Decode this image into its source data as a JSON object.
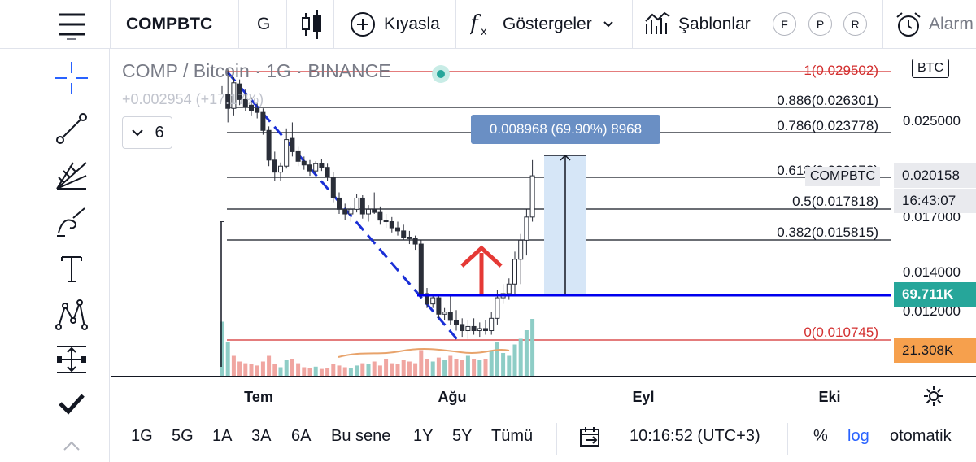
{
  "toolbar": {
    "symbol": "COMPBTC",
    "interval": "G",
    "compare_label": "Kıyasla",
    "indicators_label": "Göstergeler",
    "templates_label": "Şablonlar",
    "buttons": [
      "F",
      "P",
      "R"
    ],
    "alarm_label": "Alarm"
  },
  "legend": {
    "title": "COMP / Bitcoin · 1G · BINANCE",
    "change": "+0.002954 (+17.17%)",
    "indicators_count": "6"
  },
  "measure": {
    "label": "0.008968 (69.90%) 8968"
  },
  "fib_levels": [
    {
      "label": "1(0.029502)",
      "color": "#d32f2f"
    },
    {
      "label": "0.886(0.026301)",
      "color": "#131722"
    },
    {
      "label": "0.786(0.023778)",
      "color": "#131722"
    },
    {
      "label": "0.618(0.020072)",
      "color": "#131722"
    },
    {
      "label": "0.5(0.017818)",
      "color": "#131722"
    },
    {
      "label": "0.382(0.015815)",
      "color": "#131722"
    },
    {
      "label": "0(0.010745)",
      "color": "#d32f2f"
    }
  ],
  "price_axis": {
    "currency": "BTC",
    "labels": [
      "0.025000",
      "0.017000",
      "0.014000",
      "0.012000"
    ],
    "symbol_tag": "COMPBTC",
    "price_tag": "0.020158",
    "countdown_tag": "16:43:07",
    "hline_tag": "69.711K",
    "volume_tag": "21.308K"
  },
  "time_axis": {
    "labels": [
      "Tem",
      "Ağu",
      "Eyl",
      "Eki"
    ]
  },
  "bottom": {
    "ranges": [
      "1G",
      "5G",
      "1A",
      "3A",
      "6A",
      "Bu sene",
      "1Y",
      "5Y",
      "Tümü"
    ],
    "time": "10:16:52 (UTC+3)",
    "percent": "%",
    "log": "log",
    "auto": "otomatik"
  },
  "colors": {
    "up": "#ffffff",
    "down": "#2a2e39",
    "volume_up": "#8ecdc6",
    "volume_down": "#f0a6a1",
    "accent_blue": "#2962ff",
    "hline": "#0000ee",
    "fib_red": "#d32f2f",
    "measure_fill": "#d6e6f7",
    "log_color": "#2962ff",
    "arrow_red": "#e53935"
  },
  "chart_data": {
    "type": "candlestick",
    "ohlc": [
      {
        "o": 0.017,
        "h": 0.0282,
        "l": 0.017,
        "c": 0.0275
      },
      {
        "o": 0.0275,
        "h": 0.0297,
        "l": 0.0248,
        "c": 0.0262
      },
      {
        "o": 0.0262,
        "h": 0.029,
        "l": 0.0255,
        "c": 0.0285
      },
      {
        "o": 0.0284,
        "h": 0.0288,
        "l": 0.0265,
        "c": 0.027
      },
      {
        "o": 0.027,
        "h": 0.0279,
        "l": 0.0259,
        "c": 0.0264
      },
      {
        "o": 0.0265,
        "h": 0.0272,
        "l": 0.0255,
        "c": 0.026
      },
      {
        "o": 0.0262,
        "h": 0.0268,
        "l": 0.0252,
        "c": 0.0258
      },
      {
        "o": 0.0258,
        "h": 0.0262,
        "l": 0.0236,
        "c": 0.024
      },
      {
        "o": 0.024,
        "h": 0.0244,
        "l": 0.021,
        "c": 0.0215
      },
      {
        "o": 0.0215,
        "h": 0.0222,
        "l": 0.0198,
        "c": 0.0205
      },
      {
        "o": 0.0205,
        "h": 0.0213,
        "l": 0.0198,
        "c": 0.021
      },
      {
        "o": 0.021,
        "h": 0.0242,
        "l": 0.0208,
        "c": 0.0232
      },
      {
        "o": 0.0233,
        "h": 0.0248,
        "l": 0.0218,
        "c": 0.0222
      },
      {
        "o": 0.0222,
        "h": 0.0226,
        "l": 0.021,
        "c": 0.0214
      },
      {
        "o": 0.0214,
        "h": 0.0218,
        "l": 0.0207,
        "c": 0.0211
      },
      {
        "o": 0.0211,
        "h": 0.0215,
        "l": 0.0202,
        "c": 0.0206
      },
      {
        "o": 0.0206,
        "h": 0.0214,
        "l": 0.0203,
        "c": 0.0212
      },
      {
        "o": 0.0212,
        "h": 0.0216,
        "l": 0.0206,
        "c": 0.0209
      },
      {
        "o": 0.0209,
        "h": 0.0212,
        "l": 0.0198,
        "c": 0.0201
      },
      {
        "o": 0.0201,
        "h": 0.0205,
        "l": 0.0183,
        "c": 0.0186
      },
      {
        "o": 0.0186,
        "h": 0.019,
        "l": 0.0175,
        "c": 0.0178
      },
      {
        "o": 0.0178,
        "h": 0.0182,
        "l": 0.0171,
        "c": 0.0175
      },
      {
        "o": 0.0175,
        "h": 0.018,
        "l": 0.017,
        "c": 0.0178
      },
      {
        "o": 0.0178,
        "h": 0.0189,
        "l": 0.0176,
        "c": 0.0186
      },
      {
        "o": 0.0186,
        "h": 0.0188,
        "l": 0.0172,
        "c": 0.0175
      },
      {
        "o": 0.0175,
        "h": 0.0181,
        "l": 0.017,
        "c": 0.0178
      },
      {
        "o": 0.0178,
        "h": 0.019,
        "l": 0.0175,
        "c": 0.0176
      },
      {
        "o": 0.0176,
        "h": 0.018,
        "l": 0.0168,
        "c": 0.0171
      },
      {
        "o": 0.0171,
        "h": 0.0175,
        "l": 0.0166,
        "c": 0.017
      },
      {
        "o": 0.017,
        "h": 0.0173,
        "l": 0.0163,
        "c": 0.0166
      },
      {
        "o": 0.0166,
        "h": 0.017,
        "l": 0.0161,
        "c": 0.0164
      },
      {
        "o": 0.0164,
        "h": 0.0168,
        "l": 0.0158,
        "c": 0.016
      },
      {
        "o": 0.016,
        "h": 0.0164,
        "l": 0.0156,
        "c": 0.0159
      },
      {
        "o": 0.0159,
        "h": 0.0161,
        "l": 0.0153,
        "c": 0.0156
      },
      {
        "o": 0.0156,
        "h": 0.0158,
        "l": 0.0128,
        "c": 0.013
      },
      {
        "o": 0.013,
        "h": 0.0133,
        "l": 0.0123,
        "c": 0.0125
      },
      {
        "o": 0.0125,
        "h": 0.013,
        "l": 0.0123,
        "c": 0.0128
      },
      {
        "o": 0.0128,
        "h": 0.0129,
        "l": 0.0118,
        "c": 0.012
      },
      {
        "o": 0.012,
        "h": 0.0123,
        "l": 0.0117,
        "c": 0.0121
      },
      {
        "o": 0.0121,
        "h": 0.013,
        "l": 0.0115,
        "c": 0.0117
      },
      {
        "o": 0.0117,
        "h": 0.0122,
        "l": 0.0112,
        "c": 0.0115
      },
      {
        "o": 0.0115,
        "h": 0.0118,
        "l": 0.0109,
        "c": 0.0112
      },
      {
        "o": 0.0112,
        "h": 0.0117,
        "l": 0.0108,
        "c": 0.0114
      },
      {
        "o": 0.0114,
        "h": 0.0118,
        "l": 0.011,
        "c": 0.0112
      },
      {
        "o": 0.0112,
        "h": 0.0116,
        "l": 0.0109,
        "c": 0.0113
      },
      {
        "o": 0.0113,
        "h": 0.0117,
        "l": 0.011,
        "c": 0.0112
      },
      {
        "o": 0.0112,
        "h": 0.0121,
        "l": 0.011,
        "c": 0.0118
      },
      {
        "o": 0.0118,
        "h": 0.0132,
        "l": 0.0115,
        "c": 0.0128
      },
      {
        "o": 0.0128,
        "h": 0.0135,
        "l": 0.0125,
        "c": 0.013
      },
      {
        "o": 0.013,
        "h": 0.0138,
        "l": 0.0127,
        "c": 0.0135
      },
      {
        "o": 0.0135,
        "h": 0.0152,
        "l": 0.013,
        "c": 0.0148
      },
      {
        "o": 0.0148,
        "h": 0.0162,
        "l": 0.0135,
        "c": 0.0158
      },
      {
        "o": 0.0158,
        "h": 0.0178,
        "l": 0.015,
        "c": 0.0173
      },
      {
        "o": 0.0173,
        "h": 0.0215,
        "l": 0.017,
        "c": 0.0202
      }
    ],
    "volume": [
      {
        "v": 0.95,
        "up": true
      },
      {
        "v": 0.6,
        "up": true
      },
      {
        "v": 0.35,
        "up": false
      },
      {
        "v": 0.25,
        "up": false
      },
      {
        "v": 0.22,
        "up": false
      },
      {
        "v": 0.2,
        "up": false
      },
      {
        "v": 0.18,
        "up": false
      },
      {
        "v": 0.25,
        "up": false
      },
      {
        "v": 0.35,
        "up": false
      },
      {
        "v": 0.2,
        "up": false
      },
      {
        "v": 0.15,
        "up": true
      },
      {
        "v": 0.28,
        "up": true
      },
      {
        "v": 0.3,
        "up": false
      },
      {
        "v": 0.22,
        "up": false
      },
      {
        "v": 0.15,
        "up": false
      },
      {
        "v": 0.14,
        "up": false
      },
      {
        "v": 0.16,
        "up": true
      },
      {
        "v": 0.12,
        "up": false
      },
      {
        "v": 0.13,
        "up": false
      },
      {
        "v": 0.2,
        "up": false
      },
      {
        "v": 0.18,
        "up": false
      },
      {
        "v": 0.15,
        "up": false
      },
      {
        "v": 0.14,
        "up": true
      },
      {
        "v": 0.18,
        "up": true
      },
      {
        "v": 0.22,
        "up": false
      },
      {
        "v": 0.2,
        "up": true
      },
      {
        "v": 0.25,
        "up": false
      },
      {
        "v": 0.18,
        "up": false
      },
      {
        "v": 0.3,
        "up": false
      },
      {
        "v": 0.22,
        "up": false
      },
      {
        "v": 0.2,
        "up": false
      },
      {
        "v": 0.28,
        "up": false
      },
      {
        "v": 0.25,
        "up": false
      },
      {
        "v": 0.22,
        "up": false
      },
      {
        "v": 0.45,
        "up": false
      },
      {
        "v": 0.3,
        "up": false
      },
      {
        "v": 0.25,
        "up": true
      },
      {
        "v": 0.32,
        "up": false
      },
      {
        "v": 0.28,
        "up": true
      },
      {
        "v": 0.35,
        "up": false
      },
      {
        "v": 0.3,
        "up": false
      },
      {
        "v": 0.28,
        "up": false
      },
      {
        "v": 0.35,
        "up": true
      },
      {
        "v": 0.3,
        "up": false
      },
      {
        "v": 0.28,
        "up": true
      },
      {
        "v": 0.3,
        "up": false
      },
      {
        "v": 0.45,
        "up": true
      },
      {
        "v": 0.6,
        "up": true
      },
      {
        "v": 0.4,
        "up": true
      },
      {
        "v": 0.35,
        "up": true
      },
      {
        "v": 0.55,
        "up": true
      },
      {
        "v": 0.65,
        "up": true
      },
      {
        "v": 0.8,
        "up": true
      },
      {
        "v": 1.0,
        "up": true
      }
    ]
  }
}
